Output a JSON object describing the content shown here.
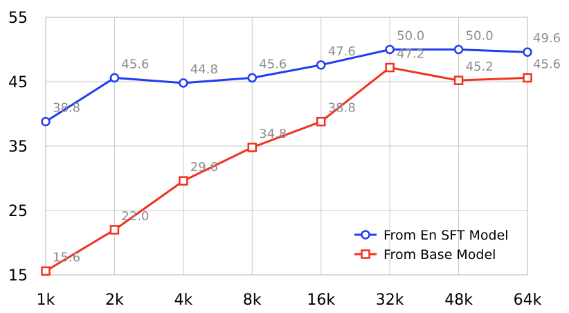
{
  "chart_data": {
    "type": "line",
    "categories": [
      "1k",
      "2k",
      "4k",
      "8k",
      "16k",
      "32k",
      "48k",
      "64k"
    ],
    "y_ticks": [
      "15",
      "25",
      "35",
      "45",
      "55"
    ],
    "ylim": [
      15,
      55
    ],
    "grid": true,
    "legend_placement": "bottom-right",
    "series": [
      {
        "name": "From En SFT Model",
        "marker": "circle",
        "color": "#1f3cf0",
        "values": [
          38.8,
          45.6,
          44.8,
          45.6,
          47.6,
          50.0,
          50.0,
          49.6
        ],
        "labels": [
          "38.8",
          "45.6",
          "44.8",
          "45.6",
          "47.6",
          "50.0",
          "50.0",
          "49.6"
        ]
      },
      {
        "name": "From Base Model",
        "marker": "square",
        "color": "#f0321e",
        "values": [
          15.6,
          22.0,
          29.6,
          34.8,
          38.8,
          47.2,
          45.2,
          45.6
        ],
        "labels": [
          "15.6",
          "22.0",
          "29.6",
          "34.8",
          "38.8",
          "47.2",
          "45.2",
          "45.6"
        ]
      }
    ]
  }
}
